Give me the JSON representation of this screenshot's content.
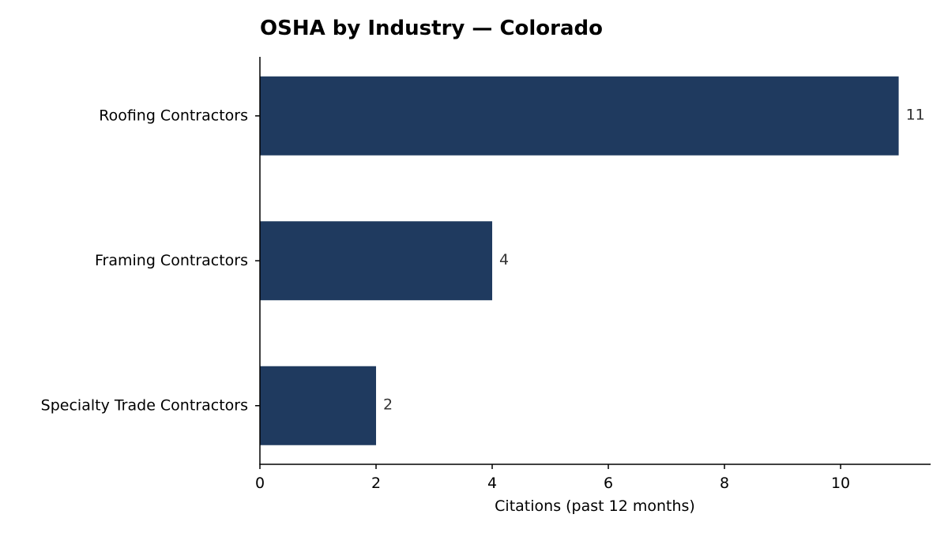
{
  "chart_data": {
    "type": "bar",
    "orientation": "horizontal",
    "title": "OSHA by Industry — Colorado",
    "xlabel": "Citations (past 12 months)",
    "ylabel": "",
    "categories": [
      "Roofing Contractors",
      "Framing Contractors",
      "Specialty Trade Contractors"
    ],
    "values": [
      11,
      4,
      2
    ],
    "value_labels": [
      "11",
      "4",
      "2"
    ],
    "xlim": [
      0,
      11.55
    ],
    "x_ticks": [
      0,
      2,
      4,
      6,
      8,
      10
    ],
    "x_tick_labels": [
      "0",
      "2",
      "4",
      "6",
      "8",
      "10"
    ],
    "bar_color": "#1f3a5f",
    "grid": false,
    "legend": "none"
  }
}
